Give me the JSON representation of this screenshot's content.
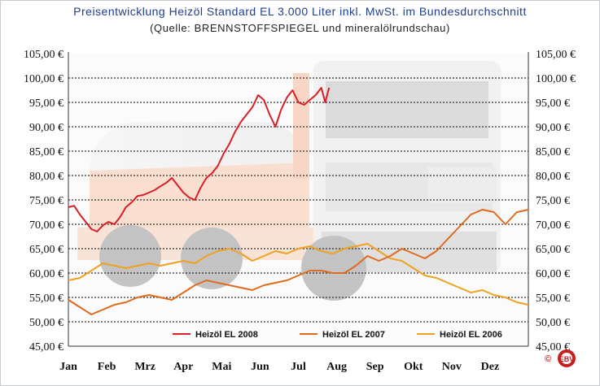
{
  "chart_data": {
    "type": "line",
    "title": "Preisentwicklung Heizöl Standard EL 3.000 Liter inkl. MwSt. im Bundesdurchschnitt",
    "subtitle": "(Quelle: BRENNSTOFFSPIEGEL und mineralölrundschau)",
    "categories": [
      "Jan",
      "Feb",
      "Mrz",
      "Apr",
      "Mai",
      "Jun",
      "Jul",
      "Aug",
      "Sep",
      "Okt",
      "Nov",
      "Dez"
    ],
    "y_ticks": [
      "105,00 €",
      "100,00 €",
      "95,00 €",
      "90,00 €",
      "85,00 €",
      "80,00 €",
      "75,00 €",
      "70,00 €",
      "65,00 €",
      "60,00 €",
      "55,00 €",
      "50,00 €",
      "45,00 €"
    ],
    "ylim": [
      45,
      105
    ],
    "grid": true,
    "legend_placement": "bottom",
    "series": [
      {
        "name": "Heizöl EL 2008",
        "color": "#d81f26",
        "x": [
          0.0,
          0.15,
          0.3,
          0.45,
          0.6,
          0.75,
          0.9,
          1.05,
          1.2,
          1.35,
          1.5,
          1.65,
          1.8,
          1.95,
          2.1,
          2.25,
          2.4,
          2.55,
          2.7,
          2.85,
          3.0,
          3.15,
          3.3,
          3.45,
          3.6,
          3.75,
          3.9,
          4.05,
          4.2,
          4.35,
          4.5,
          4.65,
          4.8,
          4.95,
          5.1,
          5.25,
          5.4,
          5.55,
          5.7,
          5.85,
          6.0,
          6.15,
          6.3,
          6.45,
          6.6,
          6.7,
          6.8
        ],
        "values": [
          73.5,
          73.8,
          72.0,
          70.5,
          69.0,
          68.5,
          69.8,
          70.5,
          70.0,
          71.5,
          73.5,
          74.5,
          75.8,
          76.0,
          76.5,
          77.0,
          77.8,
          78.5,
          79.5,
          78.0,
          76.5,
          75.5,
          75.0,
          77.5,
          79.5,
          80.5,
          82.0,
          84.5,
          86.5,
          89.0,
          91.0,
          92.5,
          94.0,
          96.5,
          95.5,
          92.5,
          90.0,
          93.5,
          96.0,
          97.5,
          95.0,
          94.5,
          95.5,
          96.5,
          98.0,
          95.0,
          98.0
        ]
      },
      {
        "name": "Heizöl EL 2007",
        "color": "#e06a1e",
        "x": [
          0.0,
          0.3,
          0.6,
          0.9,
          1.2,
          1.5,
          1.8,
          2.1,
          2.4,
          2.7,
          3.0,
          3.3,
          3.6,
          3.9,
          4.2,
          4.5,
          4.8,
          5.1,
          5.4,
          5.7,
          6.0,
          6.3,
          6.6,
          6.9,
          7.2,
          7.5,
          7.8,
          8.1,
          8.4,
          8.7,
          9.0,
          9.3,
          9.6,
          9.9,
          10.2,
          10.5,
          10.8,
          11.1,
          11.4,
          11.7,
          12.0
        ],
        "values": [
          54.5,
          53.0,
          51.5,
          52.5,
          53.5,
          54.0,
          55.0,
          55.5,
          55.0,
          54.5,
          56.0,
          57.5,
          58.5,
          58.0,
          57.5,
          57.0,
          56.5,
          57.5,
          58.0,
          58.5,
          59.5,
          60.5,
          60.5,
          60.0,
          60.0,
          61.5,
          63.5,
          62.5,
          63.5,
          65.0,
          64.0,
          63.0,
          64.5,
          67.0,
          69.5,
          72.0,
          73.0,
          72.5,
          70.0,
          72.5,
          73.0
        ]
      },
      {
        "name": "Heizöl EL 2006",
        "color": "#f0a11e",
        "x": [
          0.0,
          0.3,
          0.6,
          0.9,
          1.2,
          1.5,
          1.8,
          2.1,
          2.4,
          2.7,
          3.0,
          3.3,
          3.6,
          3.9,
          4.2,
          4.5,
          4.8,
          5.1,
          5.4,
          5.7,
          6.0,
          6.3,
          6.6,
          6.9,
          7.2,
          7.5,
          7.8,
          8.1,
          8.4,
          8.7,
          9.0,
          9.3,
          9.6,
          9.9,
          10.2,
          10.5,
          10.8,
          11.1,
          11.4,
          11.7,
          12.0
        ],
        "values": [
          58.5,
          59.0,
          60.5,
          62.0,
          61.5,
          61.0,
          61.5,
          62.0,
          61.5,
          62.0,
          62.5,
          62.0,
          63.5,
          64.5,
          65.0,
          64.0,
          62.5,
          63.5,
          64.5,
          64.0,
          65.0,
          65.5,
          64.5,
          64.0,
          65.0,
          65.5,
          66.0,
          64.5,
          63.0,
          62.5,
          61.0,
          59.5,
          59.0,
          58.0,
          57.0,
          56.0,
          56.5,
          55.5,
          55.0,
          54.0,
          53.5
        ]
      }
    ]
  },
  "copyright": "©",
  "logo_text": "EBV",
  "colors": {
    "title": "#1f3f8a",
    "grid": "#333333"
  }
}
